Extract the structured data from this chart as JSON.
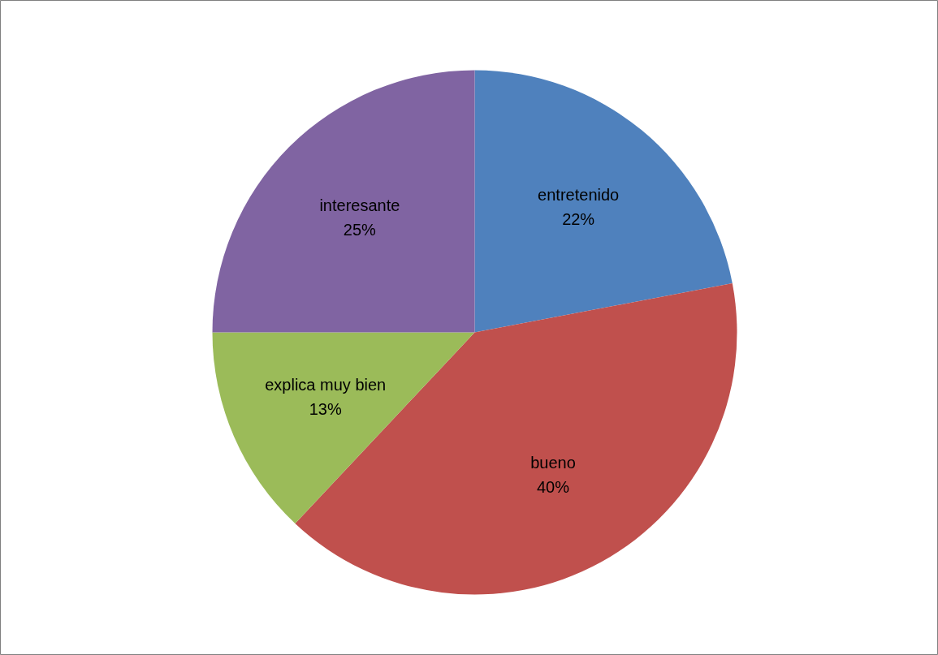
{
  "chart_data": {
    "type": "pie",
    "categories": [
      "entretenido",
      "bueno",
      "explica muy bien",
      "interesante"
    ],
    "values": [
      22,
      40,
      13,
      25
    ],
    "value_labels": [
      "22%",
      "40%",
      "13%",
      "25%"
    ],
    "colors": [
      "#4f81bd",
      "#c0504d",
      "#9bbb59",
      "#8064a2"
    ],
    "legend": false
  }
}
